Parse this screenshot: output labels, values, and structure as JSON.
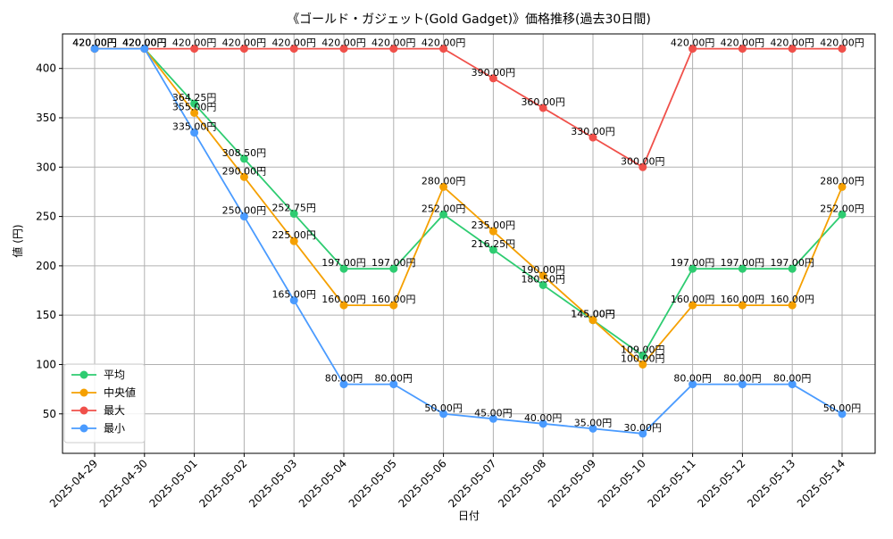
{
  "chart_data": {
    "type": "line",
    "title": "《ゴールド・ガジェット(Gold Gadget)》価格推移(過去30日間)",
    "xlabel": "日付",
    "ylabel": "値 (円)",
    "ylim": [
      10,
      435
    ],
    "yticks": [
      50,
      100,
      150,
      200,
      250,
      300,
      350,
      400
    ],
    "grid": true,
    "legend_position": "bottom-left",
    "categories": [
      "2025-04-29",
      "2025-04-30",
      "2025-05-01",
      "2025-05-02",
      "2025-05-03",
      "2025-05-04",
      "2025-05-05",
      "2025-05-06",
      "2025-05-07",
      "2025-05-08",
      "2025-05-09",
      "2025-05-10",
      "2025-05-11",
      "2025-05-12",
      "2025-05-13",
      "2025-05-14"
    ],
    "series": [
      {
        "name": "平均",
        "color": "#2ecc71",
        "values": [
          420,
          420,
          364.25,
          308.5,
          252.75,
          197,
          197,
          252,
          216.25,
          180.5,
          145,
          109,
          197,
          197,
          197,
          252
        ],
        "labels": [
          "420.00円",
          "420.00円",
          "364.25円",
          "308.50円",
          "252.75円",
          "197.00円",
          "197.00円",
          "252.00円",
          "216.25円",
          "180.50円",
          "145.00円",
          "109.00円",
          "197.00円",
          "197.00円",
          "197.00円",
          "252.00円"
        ]
      },
      {
        "name": "中央値",
        "color": "#f5a000",
        "values": [
          420,
          420,
          355,
          290,
          225,
          160,
          160,
          280,
          235,
          190,
          145,
          100,
          160,
          160,
          160,
          280
        ],
        "labels": [
          "420.00円",
          "420.00円",
          "355.00円",
          "290.00円",
          "225.00円",
          "160.00円",
          "160.00円",
          "280.00円",
          "235.00円",
          "190.00円",
          "145.00円",
          "100.00円",
          "160.00円",
          "160.00円",
          "160.00円",
          "280.00円"
        ]
      },
      {
        "name": "最大",
        "color": "#f0504a",
        "values": [
          420,
          420,
          420,
          420,
          420,
          420,
          420,
          420,
          390,
          360,
          330,
          300,
          420,
          420,
          420,
          420
        ],
        "labels": [
          "420.00円",
          "420.00円",
          "420.00円",
          "420.00円",
          "420.00円",
          "420.00円",
          "420.00円",
          "420.00円",
          "390.00円",
          "360.00円",
          "330.00円",
          "300.00円",
          "420.00円",
          "420.00円",
          "420.00円",
          "420.00円"
        ]
      },
      {
        "name": "最小",
        "color": "#4a9bff",
        "values": [
          420,
          420,
          335,
          250,
          165,
          80,
          80,
          50,
          45,
          40,
          35,
          30,
          80,
          80,
          80,
          50
        ],
        "labels": [
          "420.00円",
          "420.00円",
          "335.00円",
          "250.00円",
          "165.00円",
          "80.00円",
          "80.00円",
          "50.00円",
          "45.00円",
          "40.00円",
          "35.00円",
          "30.00円",
          "80.00円",
          "80.00円",
          "80.00円",
          "50.00円"
        ]
      }
    ]
  }
}
